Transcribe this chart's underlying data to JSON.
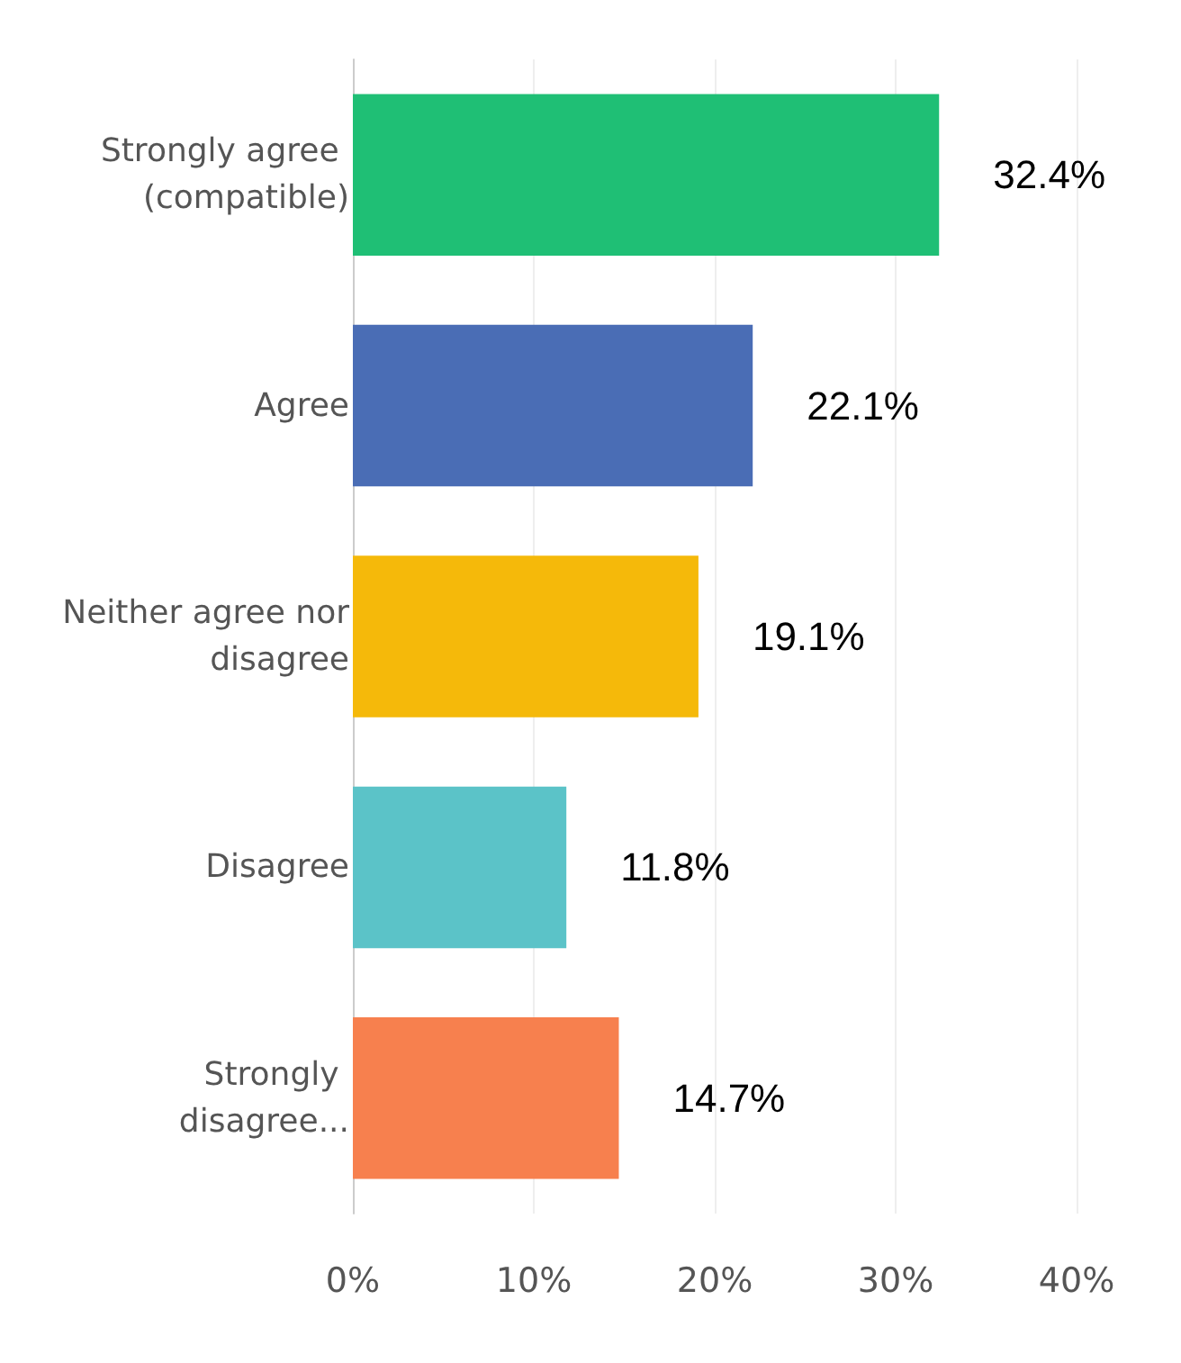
{
  "chart_data": {
    "type": "bar",
    "orientation": "horizontal",
    "categories": [
      "Strongly agree (compatible)",
      "Agree",
      "Neither agree nor disagree",
      "Disagree",
      "Strongly disagree..."
    ],
    "values": [
      32.4,
      22.1,
      19.1,
      11.8,
      14.7
    ],
    "colors": [
      "#1fbf75",
      "#4a6db5",
      "#f5b90a",
      "#5bc3c8",
      "#f7804e"
    ],
    "value_labels": [
      "32.4%",
      "22.1%",
      "19.1%",
      "11.8%",
      "14.7%"
    ],
    "xlim": [
      0,
      40
    ],
    "xticks": [
      {
        "value": 0,
        "label": "0%"
      },
      {
        "value": 10,
        "label": "10%"
      },
      {
        "value": 20,
        "label": "20%"
      },
      {
        "value": 30,
        "label": "30%"
      },
      {
        "value": 40,
        "label": "40%"
      }
    ],
    "grid": "x"
  }
}
